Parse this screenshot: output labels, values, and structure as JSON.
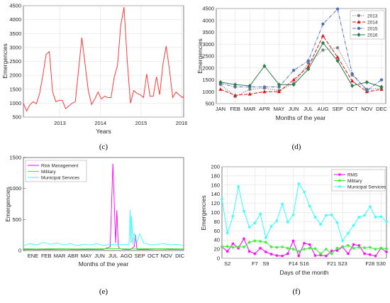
{
  "chart_data": [
    {
      "panel": "(c)",
      "type": "line",
      "xlabel": "Years",
      "ylabel": "Emergencies",
      "xlim": [
        2012.1,
        2016.05
      ],
      "ylim": [
        500,
        4500
      ],
      "xticks": [
        2013,
        2014,
        2015,
        2016
      ],
      "yticks": [
        500,
        1000,
        1500,
        2000,
        2500,
        3000,
        3500,
        4000,
        4500
      ],
      "grid": true,
      "series": [
        {
          "color": "#ff3b3b",
          "x": [
            2012.1,
            2012.18,
            2012.26,
            2012.34,
            2012.42,
            2012.5,
            2012.58,
            2012.66,
            2012.74,
            2012.82,
            2012.9,
            2012.98,
            2013.06,
            2013.14,
            2013.22,
            2013.3,
            2013.38,
            2013.46,
            2013.54,
            2013.62,
            2013.7,
            2013.78,
            2013.86,
            2013.94,
            2014.02,
            2014.1,
            2014.18,
            2014.26,
            2014.34,
            2014.42,
            2014.5,
            2014.58,
            2014.66,
            2014.74,
            2014.82,
            2014.9,
            2014.98,
            2015.06,
            2015.14,
            2015.22,
            2015.3,
            2015.38,
            2015.46,
            2015.54,
            2015.62,
            2015.7,
            2015.78,
            2015.86,
            2015.94,
            2016.02,
            2016.05
          ],
          "y": [
            1000,
            720,
            940,
            1050,
            980,
            1350,
            2000,
            2750,
            2850,
            1400,
            1050,
            1100,
            1100,
            800,
            900,
            1000,
            1050,
            2200,
            3350,
            2400,
            1450,
            950,
            1150,
            1400,
            1150,
            1250,
            1200,
            1200,
            1950,
            2350,
            3800,
            4450,
            2500,
            1000,
            1450,
            1350,
            1300,
            1200,
            2050,
            1250,
            1250,
            1950,
            1300,
            2400,
            3050,
            2200,
            1200,
            1400,
            1300,
            1200,
            1250
          ]
        }
      ]
    },
    {
      "panel": "(d)",
      "type": "line",
      "xlabel": "Months of the year",
      "ylabel": "Emergencies",
      "categories": [
        "JAN",
        "FEB",
        "MAR",
        "APR",
        "MAY",
        "JUN",
        "JUL",
        "AUG",
        "SEP",
        "OCT",
        "NOV",
        "DEC"
      ],
      "ylim": [
        500,
        4500
      ],
      "yticks": [
        500,
        1000,
        1500,
        2000,
        2500,
        3000,
        3500,
        4000,
        4500
      ],
      "grid": true,
      "legend": "top-right",
      "series": [
        {
          "name": "2013",
          "color": "#808080",
          "values": [
            1300,
            800,
            1100,
            1150,
            1050,
            1350,
            2200,
            2750,
            2850,
            1700,
            1100,
            1150
          ]
        },
        {
          "name": "2014",
          "color": "#e01010",
          "values": [
            1100,
            850,
            900,
            1000,
            1000,
            1500,
            2050,
            3350,
            2450,
            1450,
            1000,
            1100
          ]
        },
        {
          "name": "2015",
          "color": "#5070b8",
          "values": [
            1350,
            1200,
            1200,
            1200,
            1200,
            1900,
            2300,
            3850,
            4480,
            1750,
            1050,
            1500
          ]
        },
        {
          "name": "2016",
          "color": "#2e7d4f",
          "values": [
            1400,
            1300,
            1250,
            2080,
            1300,
            1300,
            1950,
            3050,
            2300,
            1250,
            1400,
            1200
          ]
        }
      ]
    },
    {
      "panel": "(e)",
      "type": "line",
      "xlabel": "Months of the year",
      "ylabel": "Emergencies",
      "xticks": [
        "ENE",
        "FEB",
        "MAR",
        "ABR",
        "MAY",
        "JUN",
        "JUL",
        "AGO",
        "SEP",
        "OCT",
        "NOV",
        "DIC"
      ],
      "ylim": [
        0,
        1500
      ],
      "yticks": [
        0,
        500,
        1000,
        1500
      ],
      "legend": "top-left",
      "series": [
        {
          "name": "Risk Management",
          "color": "#ff00ff",
          "x": [
            0,
            1,
            2,
            3,
            4,
            5,
            6,
            6.5,
            6.7,
            6.8,
            6.9,
            7.0,
            7.1,
            7.2,
            7.5,
            8,
            8.3,
            8.4,
            8.5,
            9,
            10,
            11,
            12
          ],
          "y": [
            20,
            15,
            18,
            22,
            15,
            18,
            20,
            60,
            1400,
            780,
            120,
            650,
            80,
            30,
            20,
            15,
            60,
            250,
            20,
            15,
            25,
            20,
            20
          ]
        },
        {
          "name": "Military",
          "color": "#33ee33",
          "x": [
            0,
            1,
            2,
            3,
            4,
            5,
            6,
            7,
            8,
            9,
            10,
            11,
            12
          ],
          "y": [
            30,
            25,
            30,
            28,
            25,
            30,
            28,
            30,
            25,
            30,
            28,
            30,
            25
          ]
        },
        {
          "name": "Municipal Services",
          "color": "#33ffff",
          "x": [
            0,
            0.5,
            1,
            1.5,
            2,
            2.5,
            3,
            3.5,
            4,
            4.5,
            5,
            5.5,
            6,
            6.5,
            7,
            7.5,
            7.9,
            8.0,
            8.05,
            8.1,
            8.2,
            8.3,
            8.5,
            8.7,
            9,
            9.5,
            10,
            10.5,
            11,
            11.5,
            12
          ],
          "y": [
            80,
            110,
            90,
            130,
            100,
            120,
            90,
            110,
            80,
            100,
            90,
            110,
            80,
            100,
            90,
            100,
            90,
            660,
            120,
            550,
            110,
            280,
            130,
            270,
            120,
            90,
            100,
            110,
            90,
            100,
            80
          ]
        }
      ]
    },
    {
      "panel": "(f)",
      "type": "line",
      "xlabel": "Days of the month",
      "ylabel": "Emergencies",
      "xlim": [
        1,
        31
      ],
      "xticks": [
        "S2",
        "F7",
        "S9",
        "F14",
        "S16",
        "F21",
        "S23",
        "F28",
        "S30"
      ],
      "xtick_days": [
        2,
        7,
        9,
        14,
        16,
        21,
        23,
        28,
        30
      ],
      "ylim": [
        0,
        200
      ],
      "yticks": [
        0,
        20,
        40,
        60,
        80,
        100,
        120,
        140,
        160,
        180,
        200
      ],
      "grid": true,
      "legend": "top-right",
      "x": [
        1,
        2,
        3,
        4,
        5,
        6,
        7,
        8,
        9,
        10,
        11,
        12,
        13,
        14,
        15,
        16,
        17,
        18,
        19,
        20,
        21,
        22,
        23,
        24,
        25,
        26,
        27,
        28,
        29,
        30,
        31
      ],
      "series": [
        {
          "name": "RMS",
          "color": "#ff00ff",
          "values": [
            25,
            15,
            32,
            22,
            43,
            15,
            10,
            22,
            14,
            9,
            6,
            5,
            10,
            38,
            5,
            33,
            30,
            6,
            7,
            5,
            16,
            17,
            25,
            10,
            30,
            28,
            10,
            8,
            5,
            22,
            14
          ]
        },
        {
          "name": "Military",
          "color": "#33ee33",
          "values": [
            25,
            26,
            24,
            25,
            25,
            35,
            38,
            37,
            35,
            25,
            24,
            25,
            22,
            20,
            15,
            20,
            22,
            21,
            10,
            20,
            10,
            22,
            24,
            28,
            22,
            24,
            23,
            24,
            20,
            22,
            21
          ]
        },
        {
          "name": "Municipal Services",
          "color": "#33ffff",
          "values": [
            130,
            55,
            92,
            157,
            103,
            68,
            77,
            97,
            45,
            70,
            82,
            119,
            79,
            95,
            163,
            145,
            114,
            90,
            74,
            94,
            95,
            78,
            38,
            55,
            72,
            90,
            94,
            113,
            90,
            91,
            80
          ]
        }
      ]
    }
  ],
  "captions": [
    "(c)",
    "(d)",
    "(e)",
    "(f)"
  ]
}
